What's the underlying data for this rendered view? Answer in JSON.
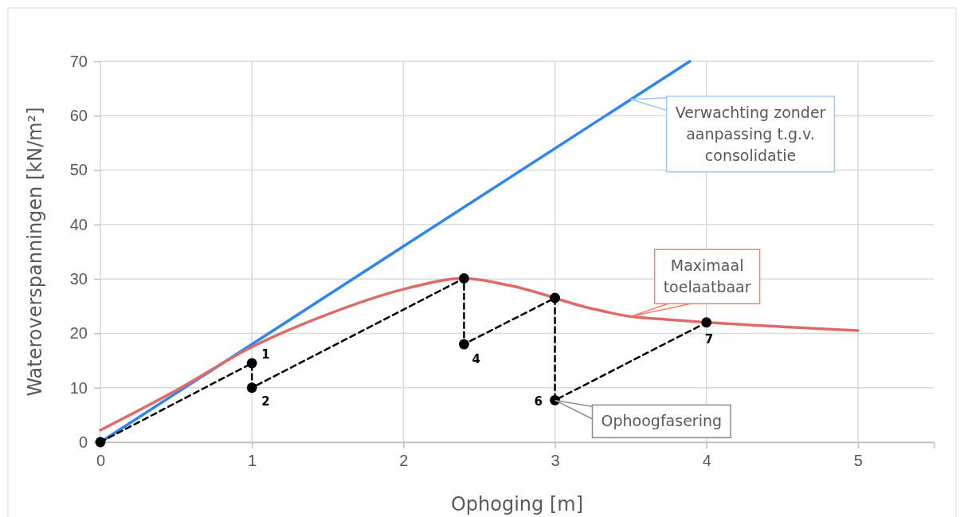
{
  "chart_data": {
    "type": "line",
    "xlabel": "Ophoging [m]",
    "ylabel": "Wateroverspanningen [kN/m²]",
    "xlim": [
      0,
      5.5
    ],
    "xticks": [
      0,
      1,
      2,
      3,
      4,
      5
    ],
    "ylim": [
      0,
      70
    ],
    "yticks": [
      0,
      10,
      20,
      30,
      40,
      50,
      60,
      70
    ],
    "grid": true,
    "series": [
      {
        "color": "#2e86f0",
        "x": [
          0,
          3.89
        ],
        "values": [
          0,
          70
        ]
      },
      {
        "color": "#dd6b6b",
        "x": [
          0,
          0.5,
          1,
          1.5,
          2,
          2.4,
          2.7,
          3.25,
          3.5,
          3.75,
          4.5,
          5
        ],
        "values": [
          2.2,
          9.5,
          17.5,
          23.5,
          28.1,
          30.1,
          28.8,
          24.5,
          23.1,
          22.5,
          21.2,
          20.5
        ]
      },
      {
        "color": "#000000",
        "marker": "circle",
        "line_style": "dashed",
        "x": [
          0,
          1,
          1,
          2.4,
          2.4,
          3,
          3,
          4
        ],
        "values": [
          0,
          14.5,
          10,
          30.1,
          18,
          26.5,
          7.7,
          22
        ]
      }
    ],
    "annotations": [
      {
        "text": "Verwachting zonder aanpassing t.g.v. consolidatie",
        "x": 3.5,
        "y": 63
      },
      {
        "text": "Maximaal toelaatbaar",
        "x": 3.5,
        "y": 23.1
      },
      {
        "text": "Ophoogfasering",
        "x": 3,
        "y": 7.7
      },
      {
        "text": "1",
        "x": 1,
        "y": 14.5
      },
      {
        "text": "2",
        "x": 1,
        "y": 10
      },
      {
        "text": "4",
        "x": 2.4,
        "y": 18
      },
      {
        "text": "6",
        "x": 3,
        "y": 7.7
      },
      {
        "text": "7",
        "x": 4,
        "y": 22
      }
    ]
  }
}
